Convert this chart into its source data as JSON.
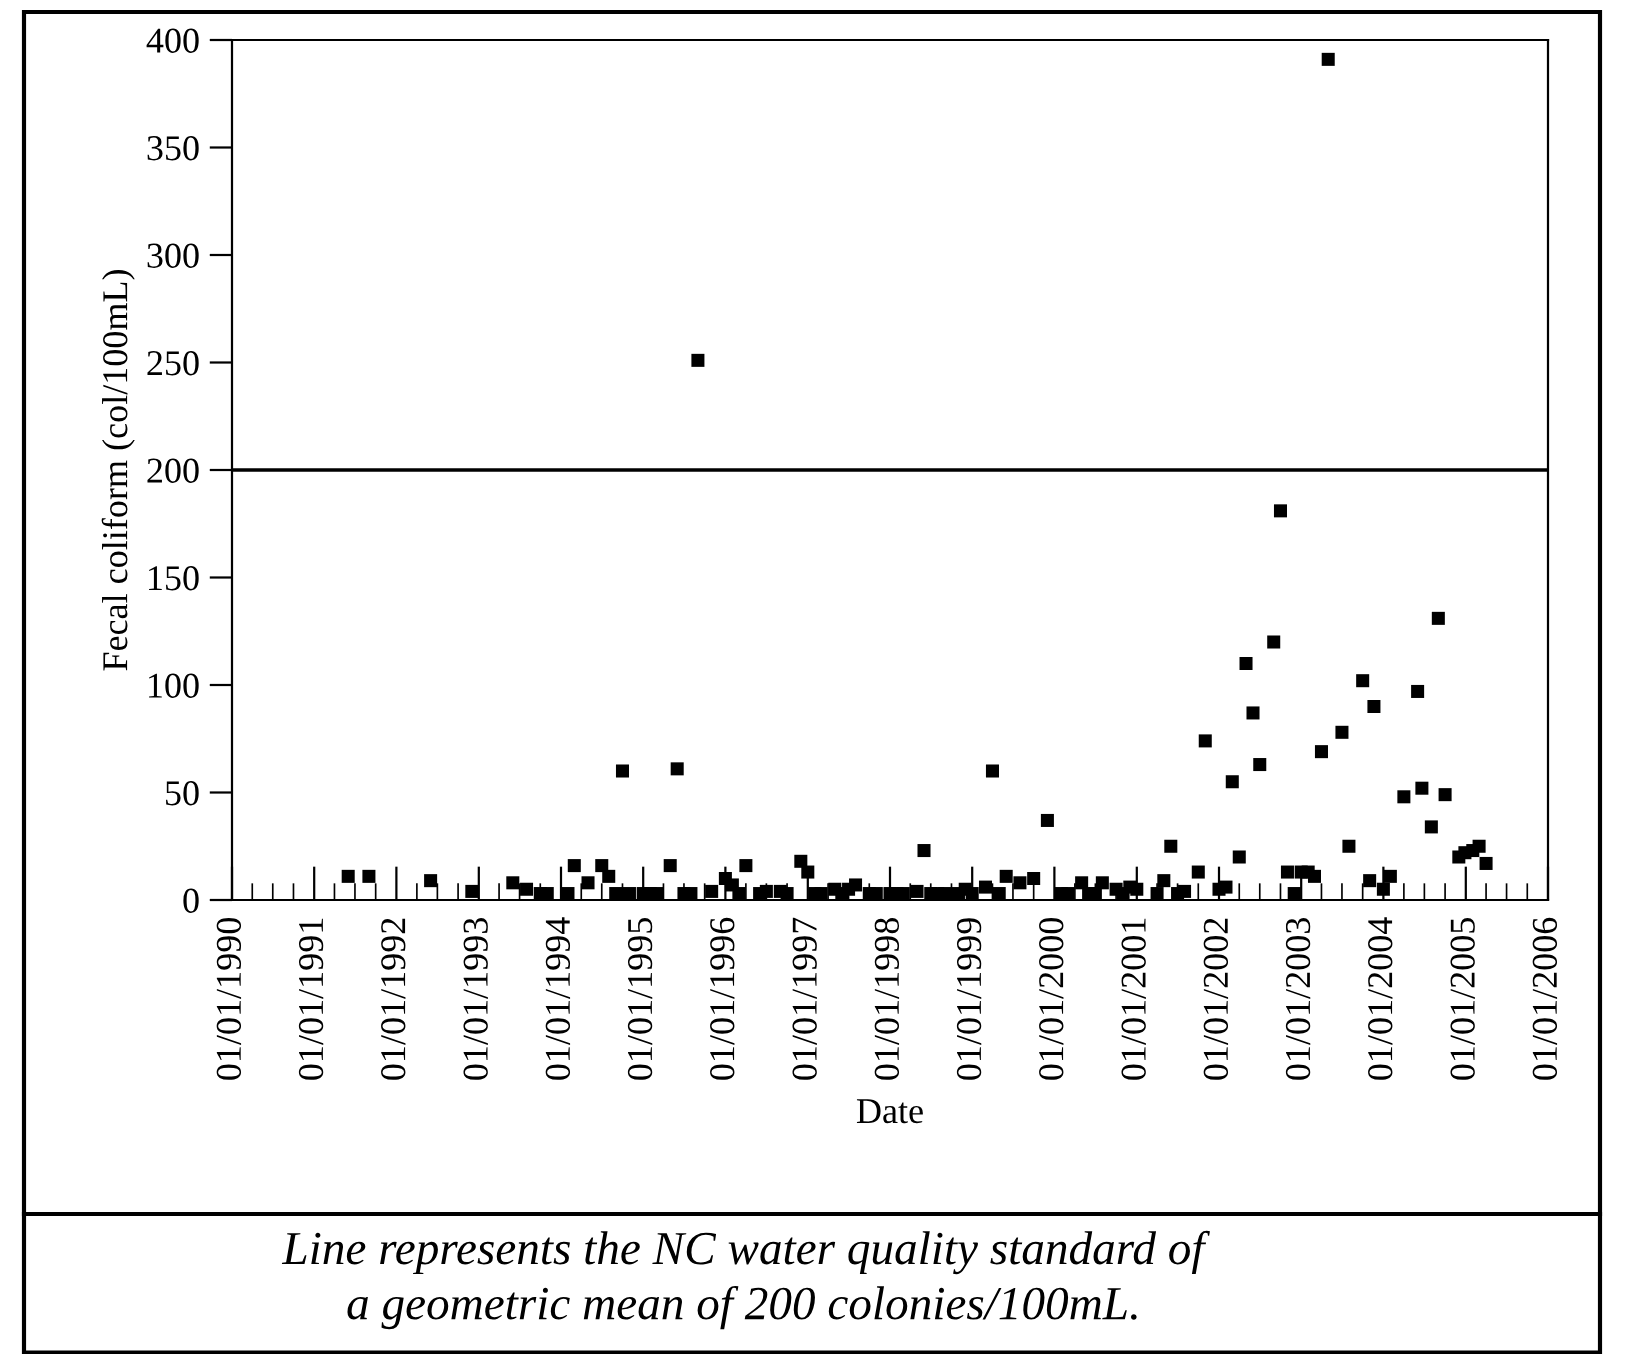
{
  "chart_data": {
    "type": "scatter",
    "xlabel": "Date",
    "ylabel": "Fecal coliform (col/100mL)",
    "annotations": [
      "Line represents the NC water quality standard of\na geometric mean of 200 colonies/100mL."
    ],
    "marker": "square",
    "grid": false,
    "legend": false,
    "xlim": [
      "1990-01-01",
      "2006-01-01"
    ],
    "xticks": [
      {
        "value": "1990-01-01",
        "label": "01/01/1990"
      },
      {
        "value": "1991-01-01",
        "label": "01/01/1991"
      },
      {
        "value": "1992-01-01",
        "label": "01/01/1992"
      },
      {
        "value": "1993-01-01",
        "label": "01/01/1993"
      },
      {
        "value": "1994-01-01",
        "label": "01/01/1994"
      },
      {
        "value": "1995-01-01",
        "label": "01/01/1995"
      },
      {
        "value": "1996-01-01",
        "label": "01/01/1996"
      },
      {
        "value": "1997-01-01",
        "label": "01/01/1997"
      },
      {
        "value": "1998-01-01",
        "label": "01/01/1998"
      },
      {
        "value": "1999-01-01",
        "label": "01/01/1999"
      },
      {
        "value": "2000-01-01",
        "label": "01/01/2000"
      },
      {
        "value": "2001-01-01",
        "label": "01/01/2001"
      },
      {
        "value": "2002-01-01",
        "label": "01/01/2002"
      },
      {
        "value": "2003-01-01",
        "label": "01/01/2003"
      },
      {
        "value": "2004-01-01",
        "label": "01/01/2004"
      },
      {
        "value": "2005-01-01",
        "label": "01/01/2005"
      },
      {
        "value": "2006-01-01",
        "label": "01/01/2006"
      }
    ],
    "ylim": [
      0,
      400
    ],
    "yticks": [
      0,
      50,
      100,
      150,
      200,
      250,
      300,
      350,
      400
    ],
    "ref_lines": [
      {
        "axis": "y",
        "value": 200,
        "color": "#000000"
      }
    ],
    "series": [
      {
        "color": "#000000",
        "x": [
          "1991-06",
          "1991-09",
          "1992-06",
          "1992-12",
          "1993-06",
          "1993-08",
          "1993-10",
          "1993-11",
          "1994-02",
          "1994-03",
          "1994-05",
          "1994-07",
          "1994-08",
          "1994-09",
          "1994-10",
          "1994-11",
          "1995-01",
          "1995-02",
          "1995-03",
          "1995-05",
          "1995-06",
          "1995-07",
          "1995-08",
          "1995-09",
          "1995-11",
          "1996-01",
          "1996-02",
          "1996-03",
          "1996-04",
          "1996-06",
          "1996-07",
          "1996-09",
          "1996-10",
          "1996-12",
          "1997-01",
          "1997-02",
          "1997-03",
          "1997-05",
          "1997-06",
          "1997-07",
          "1997-08",
          "1997-10",
          "1997-11",
          "1998-01",
          "1998-02",
          "1998-03",
          "1998-05",
          "1998-06",
          "1998-07",
          "1998-08",
          "1998-09",
          "1998-11",
          "1998-12",
          "1999-01",
          "1999-03",
          "1999-04",
          "1999-05",
          "1999-06",
          "1999-08",
          "1999-10",
          "1999-12",
          "2000-02",
          "2000-03",
          "2000-05",
          "2000-06",
          "2000-07",
          "2000-08",
          "2000-10",
          "2000-11",
          "2000-12",
          "2001-01",
          "2001-04",
          "2001-05",
          "2001-06",
          "2001-07",
          "2001-08",
          "2001-10",
          "2001-11",
          "2002-01",
          "2002-02",
          "2002-03",
          "2002-04",
          "2002-05",
          "2002-06",
          "2002-07",
          "2002-09",
          "2002-10",
          "2002-11",
          "2002-12",
          "2003-01",
          "2003-02",
          "2003-03",
          "2003-04",
          "2003-05",
          "2003-07",
          "2003-08",
          "2003-10",
          "2003-11",
          "2003-11-20",
          "2004-01",
          "2004-02",
          "2004-04",
          "2004-06",
          "2004-06-20",
          "2004-08",
          "2004-09",
          "2004-10",
          "2004-12",
          "2004-12-28",
          "2005-02",
          "2005-03",
          "2005-04"
        ],
        "values": [
          11,
          11,
          9,
          4,
          8,
          5,
          3,
          3,
          3,
          16,
          8,
          16,
          11,
          3,
          60,
          3,
          3,
          3,
          3,
          16,
          61,
          3,
          3,
          251,
          4,
          10,
          7,
          3,
          16,
          3,
          4,
          4,
          3,
          18,
          13,
          3,
          3,
          5,
          3,
          5,
          7,
          3,
          3,
          3,
          3,
          3,
          4,
          23,
          3,
          3,
          3,
          3,
          5,
          3,
          6,
          60,
          3,
          11,
          8,
          10,
          37,
          3,
          3,
          8,
          3,
          3,
          8,
          5,
          3,
          6,
          5,
          3,
          9,
          25,
          3,
          4,
          13,
          74,
          5,
          6,
          55,
          20,
          110,
          87,
          63,
          120,
          181,
          13,
          3,
          13,
          13,
          11,
          69,
          391,
          78,
          25,
          102,
          9,
          90,
          5,
          11,
          48,
          97,
          52,
          34,
          131,
          49,
          20,
          22,
          23,
          25,
          17
        ]
      }
    ]
  }
}
